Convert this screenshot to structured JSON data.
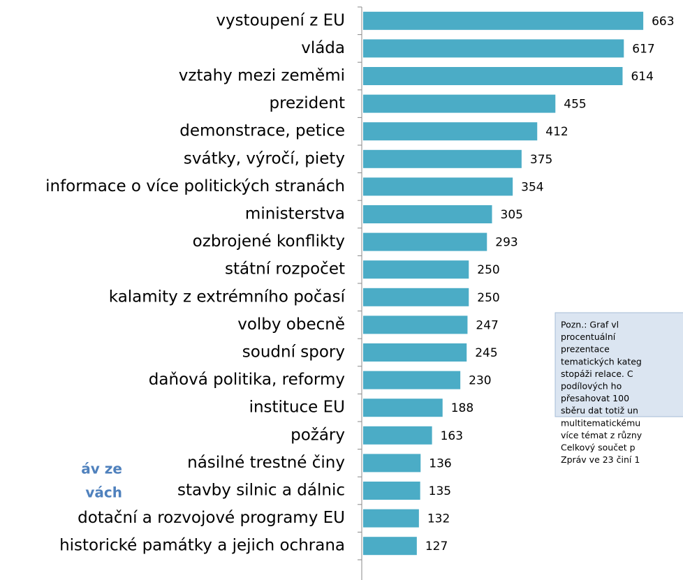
{
  "chart_data": {
    "type": "bar",
    "orientation": "horizontal",
    "color": "#4bacc6",
    "categories": [
      "vystoupení z EU",
      "vláda",
      "vztahy mezi zeměmi",
      "prezident",
      "demonstrace, petice",
      "svátky, výročí, piety",
      "informace o více politických stranách",
      "ministerstva",
      "ozbrojené konflikty",
      "státní rozpočet",
      "kalamity z extrémního počasí",
      "volby obecně",
      "soudní spory",
      "daňová politika, reformy",
      "instituce EU",
      "požáry",
      "násilné trestné činy",
      "stavby silnic a dálnic",
      "dotační a rozvojové programy EU",
      "historické památky a jejich ochrana"
    ],
    "values": [
      663,
      617,
      614,
      455,
      412,
      375,
      354,
      305,
      293,
      250,
      250,
      247,
      245,
      230,
      188,
      163,
      136,
      135,
      132,
      127
    ],
    "side_title": [
      "áv ze",
      "vách"
    ],
    "note": [
      "Pozn.: Graf vl",
      "procentuální",
      "prezentace",
      "tematických kateg",
      "stopáži relace. C",
      "podílových ho",
      "přesahovat 100",
      "sběru dat totiž un",
      "multitematickému",
      "více témat z různy",
      "Celkový součet p",
      "Zpráv ve 23 činí 1"
    ]
  }
}
